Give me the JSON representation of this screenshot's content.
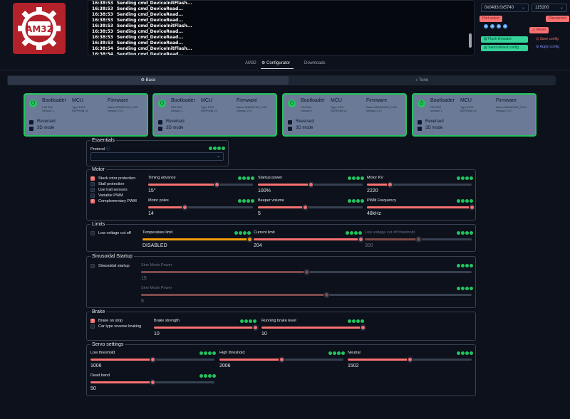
{
  "logo": {
    "text": "AM32",
    "color": "#b3212b"
  },
  "log": [
    {
      "time": "16:38:53",
      "msg": "Sending cmd_DeviceInitFlash..."
    },
    {
      "time": "16:38:53",
      "msg": "Sending cmd_DeviceRead..."
    },
    {
      "time": "16:38:53",
      "msg": "Sending cmd_DeviceRead..."
    },
    {
      "time": "16:38:53",
      "msg": "Sending cmd_DeviceRead..."
    },
    {
      "time": "16:38:53",
      "msg": "Sending cmd_DeviceInitFlash..."
    },
    {
      "time": "16:38:53",
      "msg": "Sending cmd_DeviceRead..."
    },
    {
      "time": "16:38:53",
      "msg": "Sending cmd_DeviceRead..."
    },
    {
      "time": "16:38:53",
      "msg": "Sending cmd_DeviceRead..."
    },
    {
      "time": "16:38:54",
      "msg": "Sending cmd_DeviceInitFlash..."
    },
    {
      "time": "16:38:54",
      "msg": "Sending cmd_DeviceRead..."
    }
  ],
  "connection": {
    "port": "0x0483:0x5740",
    "baud": "115200",
    "port_select": "Port select",
    "disconnect": "Disconnect",
    "flash_firmware": "Flash firmware",
    "send_default_config": "Send default config",
    "reset": "Reset",
    "save_config": "Save config",
    "apply_config": "Apply config",
    "esc_labels": [
      "1",
      "2",
      "3",
      "4"
    ]
  },
  "tabs": [
    "AM32",
    "Configurator",
    "Downloads"
  ],
  "subtabs": [
    "Base",
    "Tune"
  ],
  "escs": [
    {
      "headers": [
        "Bootloader",
        "MCU",
        "Firmware"
      ],
      "bl": "PIN PA2\nVersion 1",
      "mcu": "Type F421\nEEPROM v2",
      "fw": "Name ARMATHIS_F421\nVersion 2.17",
      "reversed": "Reversed",
      "mode3d": "3D mode"
    },
    {
      "headers": [
        "Bootloader",
        "MCU",
        "Firmware"
      ],
      "bl": "PIN PA2\nVersion 1",
      "mcu": "Type F421\nEEPROM v2",
      "fw": "Name ARMATHIS_F421\nVersion 2.17",
      "reversed": "Reversed",
      "mode3d": "3D mode"
    },
    {
      "headers": [
        "Bootloader",
        "MCU",
        "Firmware"
      ],
      "bl": "PIN PA2\nVersion 1",
      "mcu": "Type F421\nEEPROM v2",
      "fw": "Name ARMATHIS_F421\nVersion 2.17",
      "reversed": "Reversed",
      "mode3d": "3D mode"
    },
    {
      "headers": [
        "Bootloader",
        "MCU",
        "Firmware"
      ],
      "bl": "PIN PA2\nVersion 1",
      "mcu": "Type F421\nEEPROM v2",
      "fw": "Name ARMATHIS_F421\nVersion 2.17",
      "reversed": "Reversed",
      "mode3d": "3D mode"
    }
  ],
  "essentials": {
    "title": "Essentials",
    "protocol_label": "Protocol",
    "protocol_value": ""
  },
  "motor": {
    "title": "Motor",
    "checks": [
      {
        "label": "Stuck rotor protection",
        "on": true
      },
      {
        "label": "Stall protection",
        "on": false
      },
      {
        "label": "Use hall sensors",
        "on": false
      },
      {
        "label": "Variable PWM",
        "on": false
      },
      {
        "label": "Complementary PWM",
        "on": true
      }
    ],
    "sliders": [
      {
        "label": "Timing advance",
        "value": "15°",
        "pct": 0.65
      },
      {
        "label": "Startup power",
        "value": "100%",
        "pct": 0.5
      },
      {
        "label": "Motor KV",
        "value": "2220",
        "pct": 0.22
      },
      {
        "label": "Motor poles",
        "value": "14",
        "pct": 0.35
      },
      {
        "label": "Beeper volume",
        "value": "5",
        "pct": 0.45
      },
      {
        "label": "PWM Frequency",
        "value": "48kHz",
        "pct": 1.0
      }
    ]
  },
  "limits": {
    "title": "Limits",
    "check": "Low voltage cut off",
    "sliders": [
      {
        "label": "Temperature limit",
        "value": "DISABLED",
        "pct": 1.0
      },
      {
        "label": "Current limit",
        "value": "204",
        "pct": 1.0
      },
      {
        "label": "Low voltage cut off threshold",
        "value": "300",
        "pct": 0.5
      }
    ]
  },
  "sinusoidal": {
    "title": "Sinusoidal Startup",
    "check": "Sinusoidal startup",
    "sliders": [
      {
        "label": "Sine Mode Power",
        "value": "15",
        "pct": 0.5
      },
      {
        "label": "Sine Mode Power",
        "value": "6",
        "pct": 0.56
      }
    ]
  },
  "brake": {
    "title": "Brake",
    "checks": [
      {
        "label": "Brake on stop",
        "on": true
      },
      {
        "label": "Car type reverse braking",
        "on": false
      }
    ],
    "sliders": [
      {
        "label": "Brake strength",
        "value": "10",
        "pct": 1.0
      },
      {
        "label": "Running brake level",
        "value": "10",
        "pct": 1.0
      }
    ]
  },
  "servo": {
    "title": "Servo settings",
    "sliders": [
      {
        "label": "Low threshold",
        "value": "1006",
        "pct": 0.5
      },
      {
        "label": "High threshold",
        "value": "2006",
        "pct": 0.5
      },
      {
        "label": "Neutral",
        "value": "1502",
        "pct": 0.5
      },
      {
        "label": "Dead band",
        "value": "50",
        "pct": 0.5
      }
    ]
  }
}
